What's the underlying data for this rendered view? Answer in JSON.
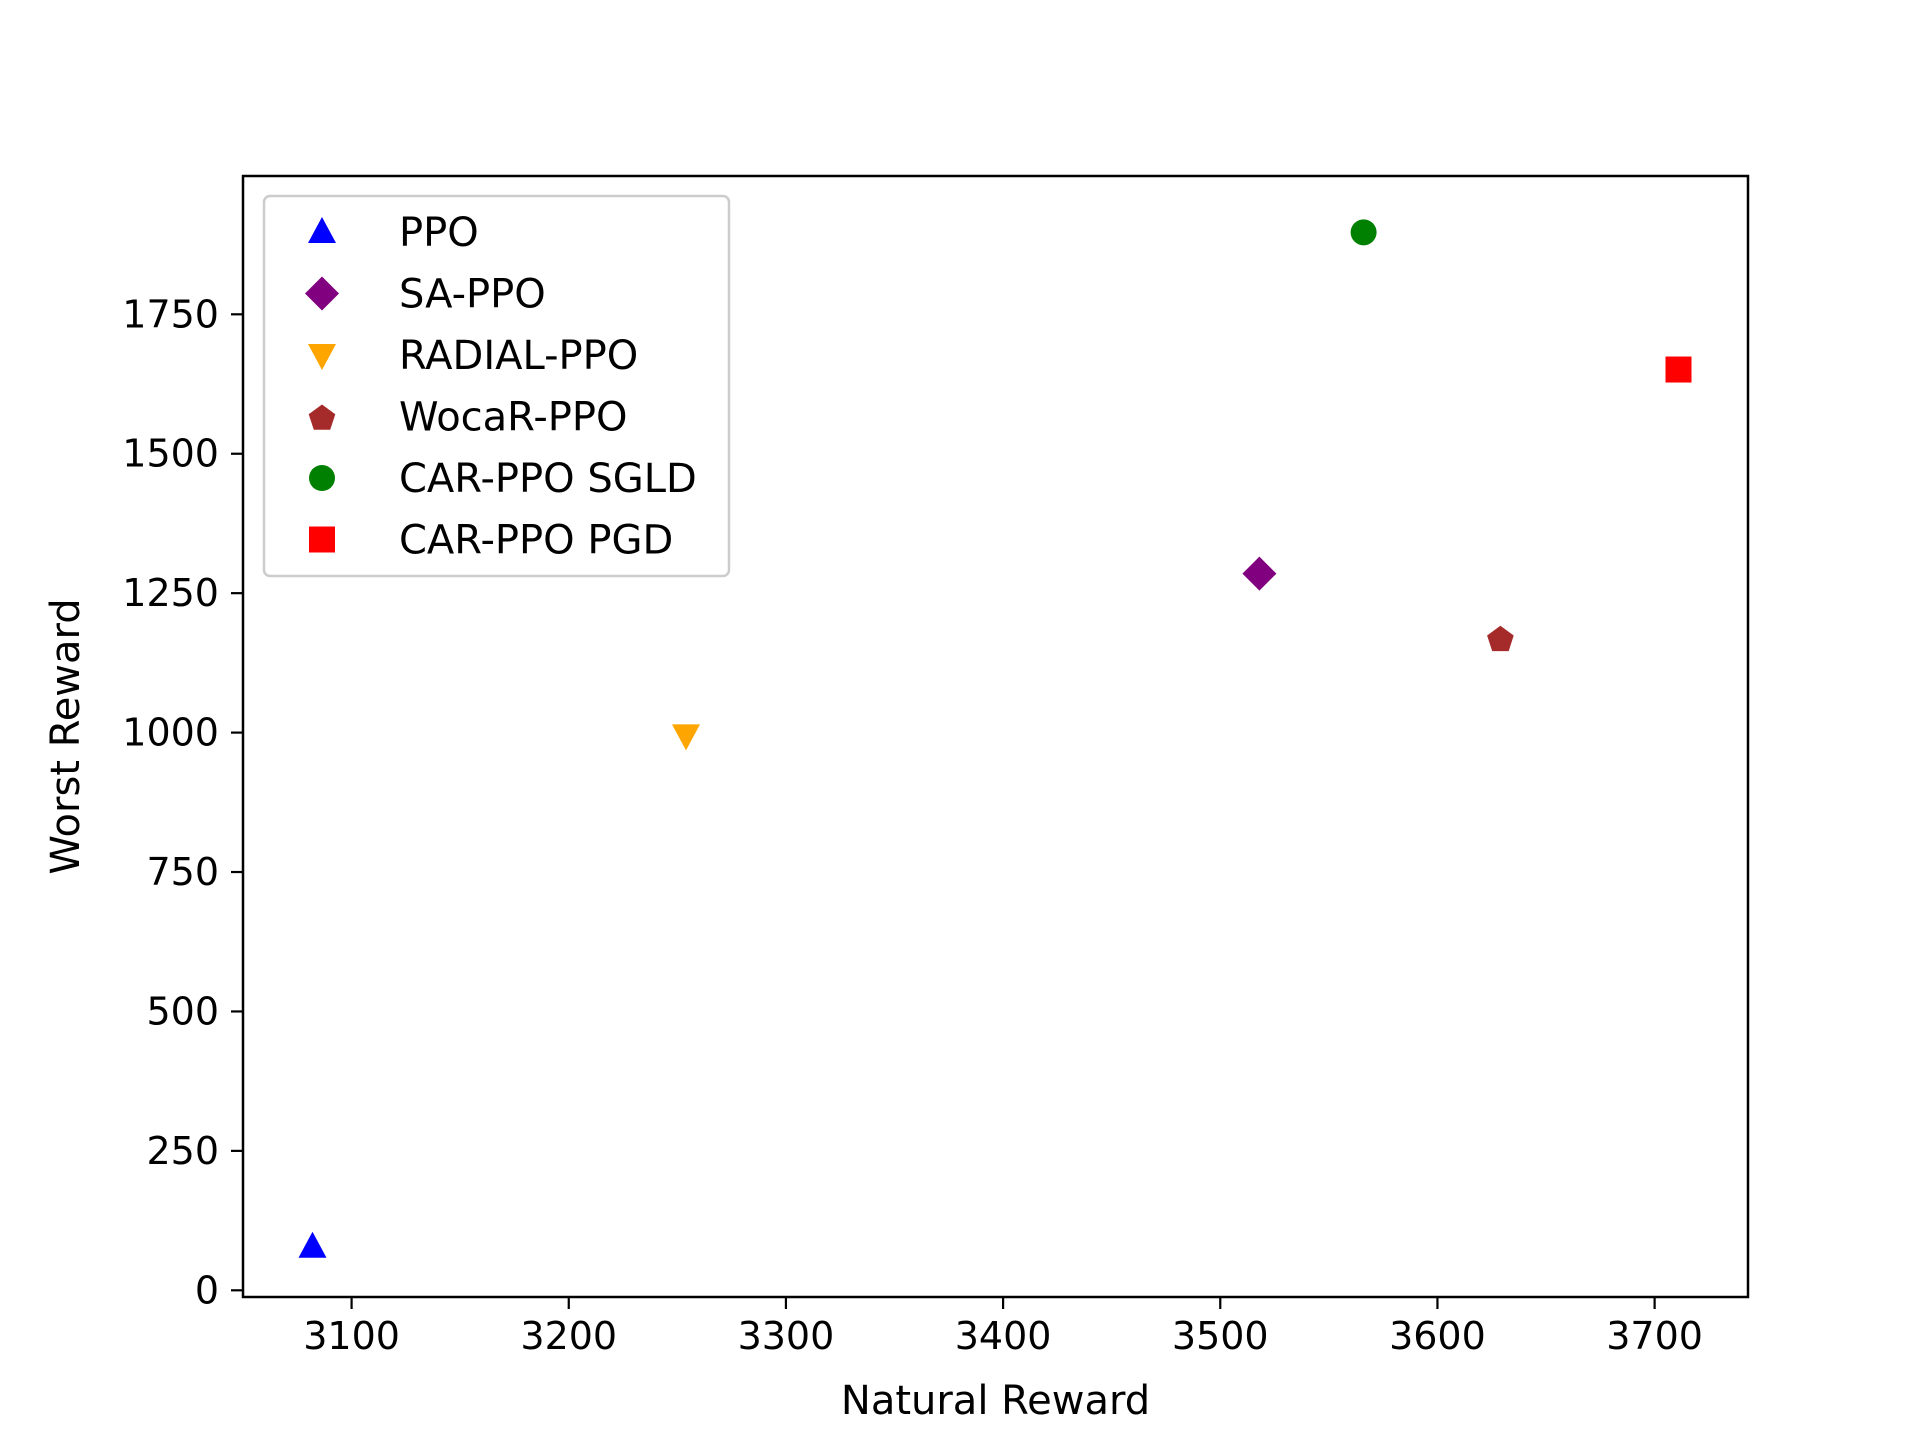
{
  "chart_data": {
    "type": "scatter",
    "title": "",
    "xlabel": "Natural Reward",
    "ylabel": "Worst Reward",
    "xlim": [
      3050,
      3743
    ],
    "ylim": [
      -12,
      1998
    ],
    "xticks": [
      3100,
      3200,
      3300,
      3400,
      3500,
      3600,
      3700
    ],
    "yticks": [
      0,
      250,
      500,
      750,
      1000,
      1250,
      1500,
      1750
    ],
    "grid": false,
    "legend_position": "upper-left",
    "series": [
      {
        "name": "PPO",
        "marker": "triangle-up",
        "color": "#0000ff",
        "x": [
          3082
        ],
        "y": [
          78
        ]
      },
      {
        "name": "SA-PPO",
        "marker": "diamond",
        "color": "#800080",
        "x": [
          3518
        ],
        "y": [
          1285
        ]
      },
      {
        "name": "RADIAL-PPO",
        "marker": "triangle-down",
        "color": "#ffa500",
        "x": [
          3254
        ],
        "y": [
          995
        ]
      },
      {
        "name": "WocaR-PPO",
        "marker": "pentagon",
        "color": "#a52a2a",
        "x": [
          3629
        ],
        "y": [
          1170
        ]
      },
      {
        "name": "CAR-PPO SGLD",
        "marker": "circle",
        "color": "#008000",
        "x": [
          3566
        ],
        "y": [
          1897
        ]
      },
      {
        "name": "CAR-PPO PGD",
        "marker": "square",
        "color": "#ff0000",
        "x": [
          3711
        ],
        "y": [
          1651
        ]
      }
    ]
  }
}
